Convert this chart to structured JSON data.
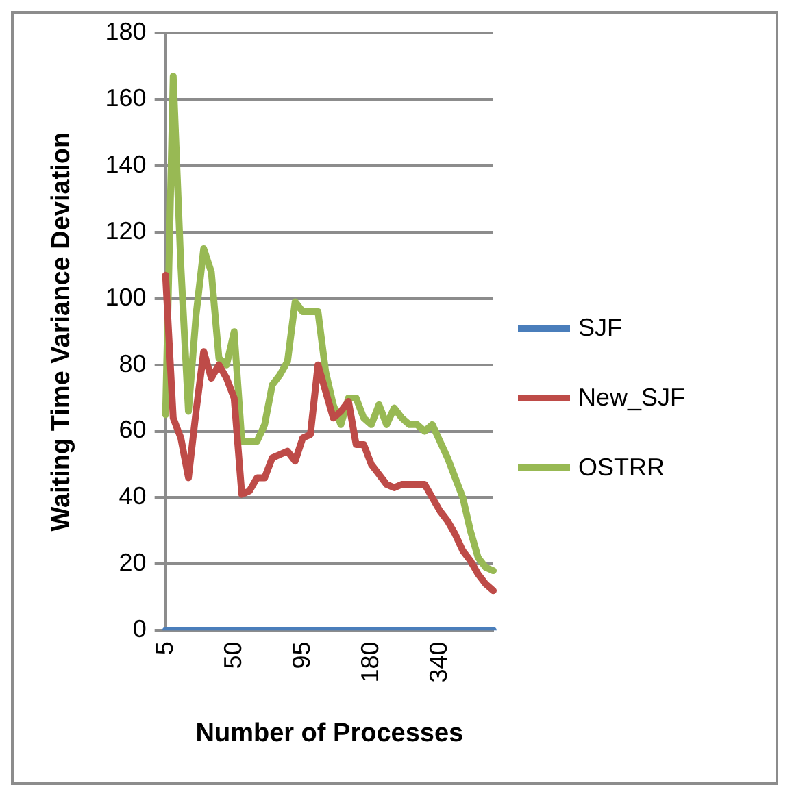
{
  "chart_data": {
    "type": "line",
    "xlabel": "Number of Processes",
    "ylabel": "Waiting Time Variance Deviation",
    "categories": [
      "5",
      null,
      null,
      null,
      null,
      null,
      null,
      null,
      null,
      "50",
      null,
      null,
      null,
      null,
      null,
      null,
      null,
      null,
      "95",
      null,
      null,
      null,
      null,
      null,
      null,
      null,
      null,
      "180",
      null,
      null,
      null,
      null,
      null,
      null,
      null,
      null,
      "340",
      null,
      null,
      null,
      null,
      null,
      null,
      null
    ],
    "series": [
      {
        "name": "SJF",
        "color": "#4a7ebb",
        "values": [
          0,
          0,
          0,
          0,
          0,
          0,
          0,
          0,
          0,
          0,
          0,
          0,
          0,
          0,
          0,
          0,
          0,
          0,
          0,
          0,
          0,
          0,
          0,
          0,
          0,
          0,
          0,
          0,
          0,
          0,
          0,
          0,
          0,
          0,
          0,
          0,
          0,
          0,
          0,
          0,
          0,
          0,
          0,
          0
        ]
      },
      {
        "name": "New_SJF",
        "color": "#be4b48",
        "values": [
          107,
          64,
          58,
          46,
          66,
          84,
          76,
          80,
          76,
          70,
          41,
          42,
          46,
          46,
          52,
          53,
          54,
          51,
          58,
          59,
          80,
          72,
          64,
          66,
          69,
          56,
          56,
          50,
          47,
          44,
          43,
          44,
          44,
          44,
          44,
          40,
          36,
          33,
          29,
          24,
          21,
          17,
          14,
          12
        ]
      },
      {
        "name": "OSTRR",
        "color": "#98b954",
        "values": [
          65,
          167,
          110,
          66,
          95,
          115,
          108,
          82,
          80,
          90,
          57,
          57,
          57,
          62,
          74,
          77,
          81,
          99,
          96,
          96,
          96,
          78,
          68,
          62,
          70,
          70,
          64,
          62,
          68,
          62,
          67,
          64,
          62,
          62,
          60,
          62,
          57,
          52,
          46,
          40,
          30,
          22,
          19,
          18
        ]
      }
    ],
    "ylim": [
      0,
      180
    ],
    "yticks": [
      0,
      20,
      40,
      60,
      80,
      100,
      120,
      140,
      160,
      180
    ],
    "grid": "y",
    "legend": "right",
    "marker": "none",
    "line_style": "solid"
  }
}
